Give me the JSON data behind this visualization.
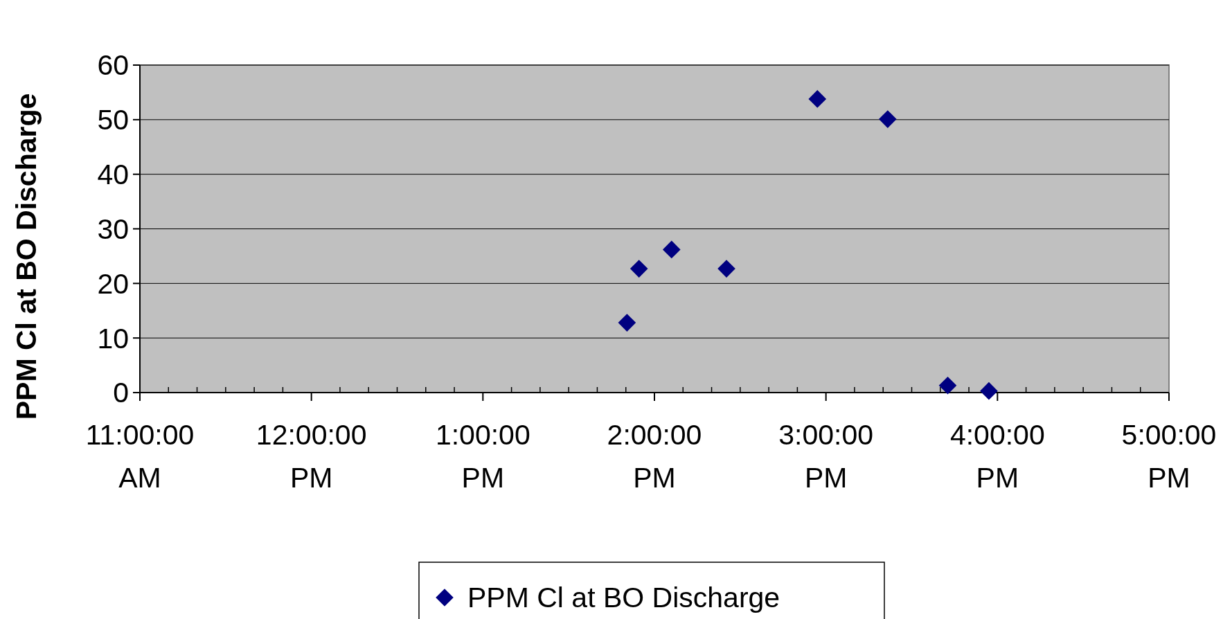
{
  "chart_data": {
    "type": "scatter",
    "ylabel": "PPM Cl at BO Discharge",
    "x": [
      13.84,
      13.91,
      14.1,
      14.42,
      14.95,
      15.36,
      15.71,
      15.95
    ],
    "series": [
      {
        "name": "PPM Cl at BO Discharge",
        "color": "#000080",
        "values": [
          12.8,
          22.7,
          26.2,
          22.7,
          53.8,
          50.1,
          1.3,
          0.3
        ]
      }
    ],
    "xlim": [
      11,
      17
    ],
    "xticks": [
      {
        "value": 11,
        "label": "11:00:00 AM"
      },
      {
        "value": 12,
        "label": "12:00:00 PM"
      },
      {
        "value": 13,
        "label": "1:00:00 PM"
      },
      {
        "value": 14,
        "label": "2:00:00 PM"
      },
      {
        "value": 15,
        "label": "3:00:00 PM"
      },
      {
        "value": 16,
        "label": "4:00:00 PM"
      },
      {
        "value": 17,
        "label": "5:00:00 PM"
      }
    ],
    "ylim": [
      0,
      60
    ],
    "yticks": [
      0,
      10,
      20,
      30,
      40,
      50,
      60
    ],
    "grid": "y",
    "legend": "bottom",
    "marker": "diamond"
  }
}
